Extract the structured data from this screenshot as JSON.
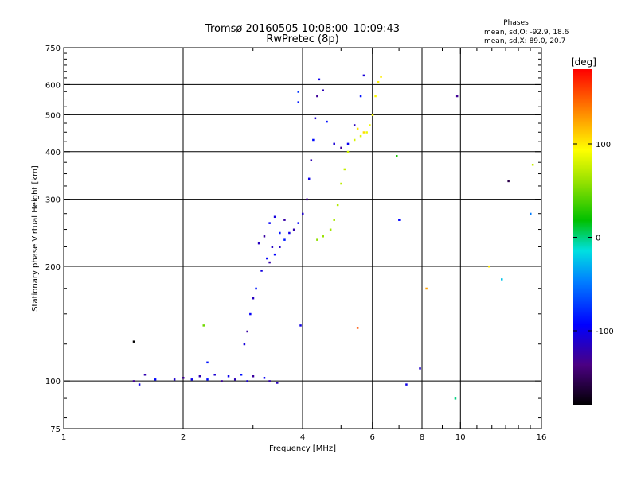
{
  "chart_data": {
    "type": "scatter",
    "title": "Tromsø 20160505 10:08:00–10:09:43",
    "subtitle": "RwPretec (8p)",
    "phase_info": {
      "heading": "Phases",
      "line_o": "mean, sd,O: -92.9, 18.6",
      "line_x": "mean, sd,X: 89.0, 20.7"
    },
    "xlabel": "Frequency [MHz]",
    "ylabel": "Stationary phase Virtual Height [km]",
    "x_scale": "log",
    "y_scale": "log",
    "xlim": [
      1,
      16
    ],
    "ylim": [
      75,
      750
    ],
    "x_ticks": [
      1,
      2,
      4,
      6,
      8,
      10,
      16
    ],
    "x_tick_labels": [
      "1",
      "2",
      "4",
      "6",
      "8",
      "10",
      "16"
    ],
    "y_ticks": [
      75,
      100,
      200,
      300,
      400,
      500,
      600,
      750
    ],
    "y_tick_labels": [
      "75",
      "100",
      "200",
      "300",
      "400",
      "500",
      "600",
      "750"
    ],
    "grid_x": [
      2,
      4,
      6,
      8,
      10
    ],
    "grid_y": [
      100,
      200,
      300,
      400,
      500,
      600
    ],
    "colorbar": {
      "label": "[deg]",
      "range": [
        -180,
        180
      ],
      "tick_values": [
        100,
        0,
        -100
      ],
      "tick_labels": [
        "100",
        "0",
        "-100"
      ]
    },
    "series": [
      {
        "points": [
          [
            1.5,
            100
          ],
          [
            1.55,
            98
          ],
          [
            1.6,
            104
          ],
          [
            1.7,
            101
          ],
          [
            1.9,
            101
          ],
          [
            2.0,
            102
          ],
          [
            2.1,
            101
          ],
          [
            2.2,
            103
          ],
          [
            2.3,
            101
          ],
          [
            2.4,
            104
          ],
          [
            2.5,
            100
          ],
          [
            2.6,
            103
          ],
          [
            2.7,
            101
          ],
          [
            2.8,
            104
          ],
          [
            2.9,
            100
          ],
          [
            3.0,
            103
          ],
          [
            3.2,
            102
          ],
          [
            3.45,
            99
          ],
          [
            2.3,
            112
          ],
          [
            2.85,
            125
          ],
          [
            2.9,
            135
          ],
          [
            2.95,
            150
          ],
          [
            3.0,
            165
          ],
          [
            3.05,
            175
          ],
          [
            3.15,
            195
          ],
          [
            3.3,
            205
          ],
          [
            3.4,
            215
          ],
          [
            3.5,
            225
          ],
          [
            3.6,
            235
          ],
          [
            3.7,
            245
          ],
          [
            3.8,
            250
          ],
          [
            3.9,
            260
          ],
          [
            4.0,
            275
          ],
          [
            4.1,
            300
          ],
          [
            4.15,
            340
          ],
          [
            4.2,
            380
          ],
          [
            4.25,
            430
          ],
          [
            4.3,
            490
          ],
          [
            4.35,
            560
          ],
          [
            4.4,
            620
          ],
          [
            4.5,
            580
          ],
          [
            4.6,
            480
          ],
          [
            4.8,
            420
          ],
          [
            5.0,
            410
          ],
          [
            5.2,
            420
          ],
          [
            5.4,
            470
          ],
          [
            5.6,
            560
          ],
          [
            5.7,
            635
          ],
          [
            3.2,
            240
          ],
          [
            3.3,
            260
          ],
          [
            3.1,
            230
          ],
          [
            3.5,
            245
          ],
          [
            3.4,
            270
          ],
          [
            3.6,
            265
          ],
          [
            3.25,
            210
          ],
          [
            3.35,
            225
          ],
          [
            3.9,
            540
          ],
          [
            3.95,
            140
          ],
          [
            3.3,
            100
          ],
          [
            7.0,
            265
          ],
          [
            7.9,
            108
          ]
        ],
        "value_range_deg": [
          -130,
          -85
        ]
      },
      {
        "points": [
          [
            4.35,
            235
          ],
          [
            4.5,
            240
          ],
          [
            4.7,
            250
          ],
          [
            4.8,
            265
          ],
          [
            4.9,
            290
          ],
          [
            5.0,
            330
          ],
          [
            5.1,
            360
          ],
          [
            5.2,
            400
          ],
          [
            5.4,
            430
          ],
          [
            5.6,
            440
          ],
          [
            5.8,
            450
          ],
          [
            5.9,
            470
          ],
          [
            6.0,
            500
          ],
          [
            6.1,
            560
          ],
          [
            6.2,
            610
          ],
          [
            6.3,
            630
          ],
          [
            5.5,
            460
          ],
          [
            5.7,
            450
          ]
        ],
        "value_range_deg": [
          60,
          110
        ]
      },
      {
        "points": [
          [
            1.5,
            127
          ],
          [
            2.25,
            140
          ],
          [
            3.9,
            575
          ],
          [
            5.5,
            138
          ],
          [
            6.9,
            390
          ],
          [
            7.3,
            98
          ],
          [
            8.2,
            175
          ],
          [
            9.7,
            90
          ],
          [
            9.8,
            560
          ],
          [
            11.8,
            200
          ],
          [
            12.7,
            185
          ],
          [
            13.2,
            335
          ],
          [
            15.2,
            370
          ],
          [
            15.0,
            275
          ]
        ],
        "value_range_deg": [
          -180,
          180
        ]
      }
    ]
  }
}
